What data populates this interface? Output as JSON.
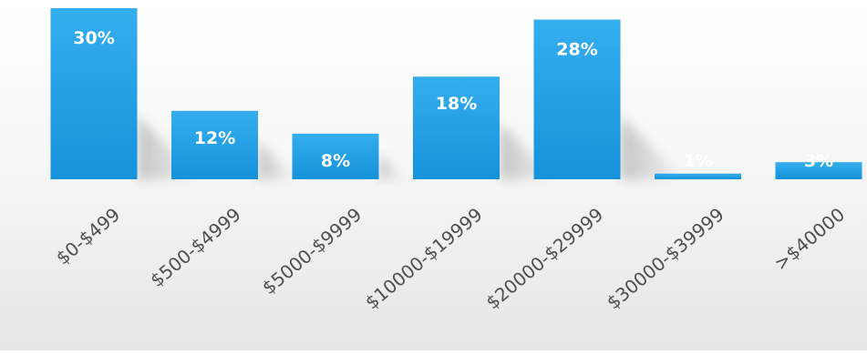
{
  "chart_data": {
    "type": "bar",
    "title": "",
    "xlabel": "",
    "ylabel": "",
    "ylim": [
      0,
      30
    ],
    "grid": false,
    "legend": "none",
    "categories": [
      "$0-$499",
      "$500-$4999",
      "$5000-$9999",
      "$10000-$19999",
      "$20000-$29999",
      "$30000-$39999",
      ">$40000"
    ],
    "values": [
      30,
      12,
      8,
      18,
      28,
      1,
      3
    ],
    "data_labels": [
      "30%",
      "12%",
      "8%",
      "18%",
      "28%",
      "1%",
      "3%"
    ],
    "colors": {
      "bar_top": "#35aeee",
      "bar_bottom": "#1692db",
      "label": "#ffffff",
      "tick": "#4f4f4f",
      "shadow": "#b8b8b8"
    }
  }
}
